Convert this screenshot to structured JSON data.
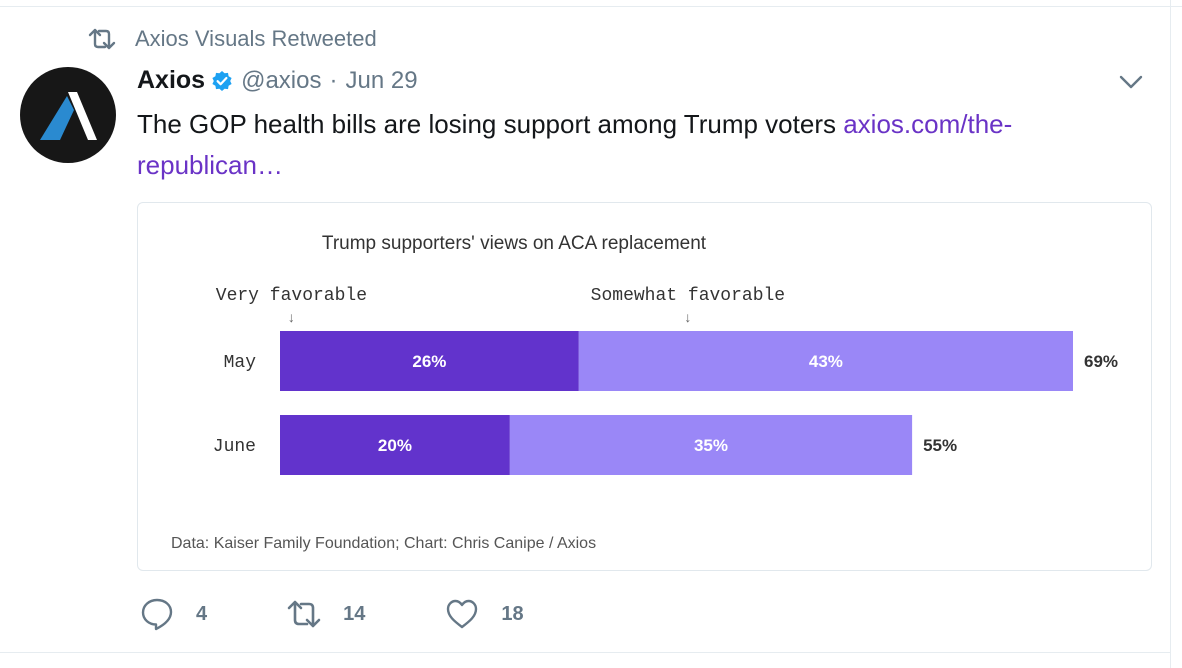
{
  "retweet_context": {
    "text": "Axios Visuals Retweeted",
    "icon": "retweet-icon"
  },
  "tweet": {
    "display_name": "Axios",
    "handle": "@axios",
    "separator": "·",
    "date": "Jun 29",
    "text": "The GOP health bills are losing support among Trump voters ",
    "link_text": "axios.com/the-republican…",
    "link_color": "#6a33c6",
    "verified_color": "#1da1f2"
  },
  "card": {
    "title": "Trump supporters' views on ACA replacement",
    "footnote": "Data: Kaiser Family Foundation; Chart: Chris Canipe / Axios"
  },
  "chart_data": {
    "type": "bar",
    "orientation": "horizontal",
    "stacked": true,
    "title": "Trump supporters' views on ACA replacement",
    "categories": [
      "May",
      "June"
    ],
    "series": [
      {
        "name": "Very favorable",
        "values": [
          26,
          20
        ],
        "labels": [
          "26%",
          "20%"
        ],
        "color": "#6233cc"
      },
      {
        "name": "Somewhat favorable",
        "values": [
          43,
          35
        ],
        "labels": [
          "43%",
          "35%"
        ],
        "color": "#9a87f7"
      }
    ],
    "totals": [
      69,
      55
    ],
    "total_labels": [
      "69%",
      "55%"
    ],
    "annotation_arrow": "↓",
    "xlim": [
      0,
      69
    ],
    "legend": "annotations-above-bars"
  },
  "actions": {
    "reply_count": "4",
    "retweet_count": "14",
    "like_count": "18"
  }
}
